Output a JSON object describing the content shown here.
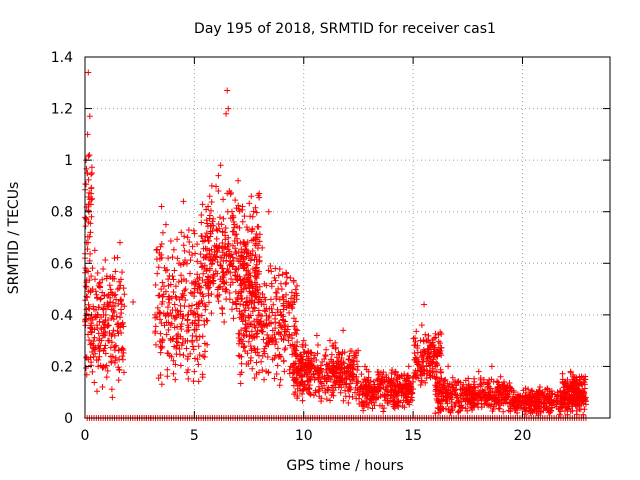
{
  "chart_data": {
    "type": "scatter",
    "title": "Day 195 of 2018, SRMTID for receiver cas1",
    "xlabel": "GPS time / hours",
    "ylabel": "SRMTID / TECUs",
    "xlim": [
      0,
      24
    ],
    "ylim": [
      0,
      1.4
    ],
    "xticks": [
      0,
      5,
      10,
      15,
      20
    ],
    "yticks": [
      0,
      0.2,
      0.4,
      0.6,
      0.8,
      1,
      1.2,
      1.4
    ],
    "xtick_labels": [
      "0",
      "5",
      "10",
      "15",
      "20"
    ],
    "ytick_labels": [
      "0",
      "0.2",
      "0.4",
      "0.6",
      "0.8",
      "1",
      "1.2",
      "1.4"
    ],
    "grid": true,
    "marker": "+",
    "color": "#ff0000",
    "series": [
      {
        "name": "SRMTID",
        "points": [
          [
            0.0,
            0.62
          ],
          [
            0.05,
            1.0
          ],
          [
            0.08,
            0.68
          ],
          [
            0.1,
            0.95
          ],
          [
            0.12,
            1.1
          ],
          [
            0.15,
            1.34
          ],
          [
            0.18,
            0.8
          ],
          [
            0.2,
            1.02
          ],
          [
            0.22,
            1.17
          ],
          [
            0.25,
            0.72
          ],
          [
            0.28,
            0.55
          ],
          [
            0.3,
            0.4
          ],
          [
            0.35,
            0.5
          ],
          [
            0.4,
            0.28
          ],
          [
            0.45,
            0.65
          ],
          [
            0.5,
            0.42
          ],
          [
            0.55,
            0.36
          ],
          [
            0.6,
            0.2
          ],
          [
            0.65,
            0.52
          ],
          [
            0.7,
            0.46
          ],
          [
            0.75,
            0.3
          ],
          [
            0.8,
            0.12
          ],
          [
            0.85,
            0.4
          ],
          [
            0.9,
            0.35
          ],
          [
            0.95,
            0.25
          ],
          [
            1.0,
            0.55
          ],
          [
            1.05,
            0.38
          ],
          [
            1.1,
            0.3
          ],
          [
            1.15,
            0.45
          ],
          [
            1.2,
            0.22
          ],
          [
            1.25,
            0.08
          ],
          [
            1.3,
            0.34
          ],
          [
            1.35,
            0.62
          ],
          [
            1.4,
            0.28
          ],
          [
            1.5,
            0.5
          ],
          [
            1.6,
            0.68
          ],
          [
            1.7,
            0.24
          ],
          [
            1.8,
            0.48
          ],
          [
            2.2,
            0.45
          ],
          [
            2.4,
            0.0
          ],
          [
            2.6,
            0.0
          ],
          [
            2.8,
            0.0
          ],
          [
            3.0,
            0.0
          ],
          [
            3.2,
            0.4
          ],
          [
            3.3,
            0.56
          ],
          [
            3.4,
            0.64
          ],
          [
            3.5,
            0.82
          ],
          [
            3.55,
            0.3
          ],
          [
            3.6,
            0.48
          ],
          [
            3.7,
            0.75
          ],
          [
            3.8,
            0.62
          ],
          [
            3.9,
            0.36
          ],
          [
            4.0,
            0.55
          ],
          [
            4.1,
            0.44
          ],
          [
            4.2,
            0.28
          ],
          [
            4.3,
            0.6
          ],
          [
            4.4,
            0.72
          ],
          [
            4.5,
            0.84
          ],
          [
            4.6,
            0.5
          ],
          [
            4.7,
            0.4
          ],
          [
            4.8,
            0.56
          ],
          [
            4.9,
            0.3
          ],
          [
            5.0,
            0.18
          ],
          [
            5.1,
            0.44
          ],
          [
            5.2,
            0.36
          ],
          [
            5.3,
            0.6
          ],
          [
            5.4,
            0.24
          ],
          [
            5.5,
            0.42
          ],
          [
            5.6,
            0.7
          ],
          [
            5.7,
            0.86
          ],
          [
            5.8,
            0.9
          ],
          [
            5.9,
            0.55
          ],
          [
            6.0,
            0.66
          ],
          [
            6.1,
            0.94
          ],
          [
            6.2,
            0.98
          ],
          [
            6.3,
            0.5
          ],
          [
            6.4,
            0.72
          ],
          [
            6.45,
            1.18
          ],
          [
            6.5,
            1.27
          ],
          [
            6.55,
            1.2
          ],
          [
            6.6,
            0.88
          ],
          [
            6.7,
            0.6
          ],
          [
            6.8,
            0.76
          ],
          [
            6.9,
            0.44
          ],
          [
            7.0,
            0.92
          ],
          [
            7.1,
            0.68
          ],
          [
            7.2,
            0.82
          ],
          [
            7.3,
            0.54
          ],
          [
            7.4,
            0.74
          ],
          [
            7.5,
            0.62
          ],
          [
            7.6,
            0.86
          ],
          [
            7.7,
            0.48
          ],
          [
            7.8,
            0.58
          ],
          [
            7.9,
            0.7
          ],
          [
            8.0,
            0.4
          ],
          [
            8.1,
            0.66
          ],
          [
            8.2,
            0.52
          ],
          [
            8.3,
            0.38
          ],
          [
            8.4,
            0.8
          ],
          [
            8.5,
            0.46
          ],
          [
            8.6,
            0.3
          ],
          [
            8.7,
            0.58
          ],
          [
            8.8,
            0.42
          ],
          [
            8.9,
            0.24
          ],
          [
            9.0,
            0.5
          ],
          [
            9.1,
            0.36
          ],
          [
            9.2,
            0.56
          ],
          [
            9.3,
            0.3
          ],
          [
            9.4,
            0.2
          ],
          [
            9.5,
            0.44
          ],
          [
            9.6,
            0.28
          ],
          [
            9.7,
            0.34
          ],
          [
            9.8,
            0.22
          ],
          [
            9.9,
            0.16
          ],
          [
            10.0,
            0.3
          ],
          [
            10.2,
            0.26
          ],
          [
            10.4,
            0.2
          ],
          [
            10.6,
            0.32
          ],
          [
            10.8,
            0.18
          ],
          [
            11.0,
            0.24
          ],
          [
            11.2,
            0.3
          ],
          [
            11.4,
            0.14
          ],
          [
            11.6,
            0.22
          ],
          [
            11.8,
            0.34
          ],
          [
            12.0,
            0.2
          ],
          [
            12.2,
            0.26
          ],
          [
            12.4,
            0.16
          ],
          [
            12.6,
            0.12
          ],
          [
            12.8,
            0.2
          ],
          [
            13.0,
            0.1
          ],
          [
            13.2,
            0.14
          ],
          [
            13.4,
            0.08
          ],
          [
            13.6,
            0.16
          ],
          [
            13.8,
            0.12
          ],
          [
            14.0,
            0.1
          ],
          [
            14.2,
            0.18
          ],
          [
            14.4,
            0.06
          ],
          [
            14.6,
            0.12
          ],
          [
            14.8,
            0.2
          ],
          [
            15.0,
            0.14
          ],
          [
            15.2,
            0.28
          ],
          [
            15.4,
            0.36
          ],
          [
            15.5,
            0.44
          ],
          [
            15.6,
            0.3
          ],
          [
            15.8,
            0.22
          ],
          [
            16.0,
            0.18
          ],
          [
            16.2,
            0.1
          ],
          [
            16.4,
            0.14
          ],
          [
            16.6,
            0.2
          ],
          [
            16.8,
            0.12
          ],
          [
            17.0,
            0.08
          ],
          [
            17.2,
            0.04
          ],
          [
            17.4,
            0.1
          ],
          [
            17.6,
            0.06
          ],
          [
            17.8,
            0.14
          ],
          [
            18.0,
            0.18
          ],
          [
            18.2,
            0.08
          ],
          [
            18.4,
            0.12
          ],
          [
            18.6,
            0.2
          ],
          [
            18.8,
            0.1
          ],
          [
            19.0,
            0.16
          ],
          [
            19.2,
            0.08
          ],
          [
            19.4,
            0.06
          ],
          [
            19.6,
            0.1
          ],
          [
            19.8,
            0.04
          ],
          [
            20.0,
            0.06
          ],
          [
            20.2,
            0.03
          ],
          [
            20.4,
            0.08
          ],
          [
            20.6,
            0.05
          ],
          [
            20.8,
            0.12
          ],
          [
            21.0,
            0.04
          ],
          [
            21.2,
            0.08
          ],
          [
            21.4,
            0.06
          ],
          [
            21.6,
            0.1
          ],
          [
            21.8,
            0.04
          ],
          [
            22.0,
            0.12
          ],
          [
            22.2,
            0.18
          ],
          [
            22.4,
            0.1
          ],
          [
            22.6,
            0.16
          ],
          [
            22.8,
            0.14
          ],
          [
            22.9,
            0.08
          ]
        ]
      }
    ],
    "cloud_bands": [
      {
        "x": [
          0.0,
          1.8
        ],
        "y": [
          0.1,
          0.65
        ],
        "n": 220
      },
      {
        "x": [
          0.0,
          0.35
        ],
        "y": [
          0.55,
          1.05
        ],
        "n": 40
      },
      {
        "x": [
          3.2,
          5.6
        ],
        "y": [
          0.12,
          0.75
        ],
        "n": 260
      },
      {
        "x": [
          5.3,
          8.0
        ],
        "y": [
          0.35,
          0.9
        ],
        "n": 360
      },
      {
        "x": [
          7.0,
          9.7
        ],
        "y": [
          0.12,
          0.6
        ],
        "n": 320
      },
      {
        "x": [
          9.5,
          12.5
        ],
        "y": [
          0.05,
          0.3
        ],
        "n": 380
      },
      {
        "x": [
          12.5,
          15.0
        ],
        "y": [
          0.02,
          0.2
        ],
        "n": 300
      },
      {
        "x": [
          15.0,
          16.3
        ],
        "y": [
          0.1,
          0.35
        ],
        "n": 160
      },
      {
        "x": [
          16.0,
          19.5
        ],
        "y": [
          0.01,
          0.16
        ],
        "n": 380
      },
      {
        "x": [
          19.5,
          22.9
        ],
        "y": [
          0.01,
          0.12
        ],
        "n": 360
      },
      {
        "x": [
          21.8,
          22.9
        ],
        "y": [
          0.05,
          0.18
        ],
        "n": 120
      }
    ],
    "zero_baseline": {
      "x": [
        0.1,
        22.9
      ],
      "y": 0.0,
      "n": 220
    }
  }
}
